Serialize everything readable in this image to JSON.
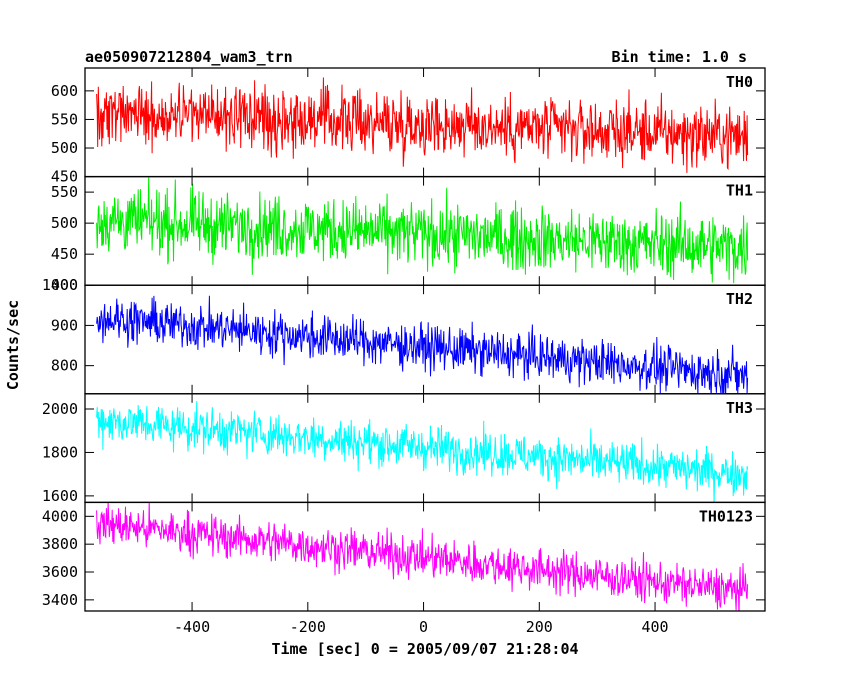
{
  "chart_data": {
    "type": "line",
    "title_left": "ae050907212804_wam3_trn",
    "title_right": "Bin time: 1.0 s",
    "xlabel": "Time [sec] 0 = 2005/09/07 21:28:04",
    "ylabel": "Counts/sec",
    "xlim": [
      -585,
      590
    ],
    "x_ticks": [
      "-400",
      "-200",
      "0",
      "200",
      "400"
    ],
    "x_tick_values": [
      -400,
      -200,
      0,
      200,
      400
    ],
    "x_range": [
      -565,
      560
    ],
    "bin_time": 1.0,
    "series": [
      {
        "name": "TH0",
        "color": "#ff0000",
        "ylim": [
          450,
          640
        ],
        "y_ticks": [
          "450",
          "500",
          "550",
          "600"
        ],
        "y_tick_values": [
          450,
          500,
          550,
          600
        ],
        "trend_start": 565,
        "trend_end": 520,
        "noise_sigma": 28
      },
      {
        "name": "TH1",
        "color": "#00ee00",
        "ylim": [
          400,
          575
        ],
        "y_ticks": [
          "400",
          "450",
          "500",
          "550"
        ],
        "y_tick_values": [
          400,
          450,
          500,
          550
        ],
        "trend_start": 505,
        "trend_end": 460,
        "noise_sigma": 26
      },
      {
        "name": "TH2",
        "color": "#0000ff",
        "ylim": [
          730,
          1000
        ],
        "y_ticks": [
          "800",
          "900",
          "1000"
        ],
        "y_tick_values": [
          800,
          900,
          1000
        ],
        "trend_start": 920,
        "trend_end": 775,
        "noise_sigma": 28
      },
      {
        "name": "TH3",
        "color": "#00ffff",
        "ylim": [
          1570,
          2070
        ],
        "y_ticks": [
          "1600",
          "1800",
          "2000"
        ],
        "y_tick_values": [
          1600,
          1800,
          2000
        ],
        "trend_start": 1950,
        "trend_end": 1700,
        "noise_sigma": 50
      },
      {
        "name": "TH0123",
        "color": "#ff00ff",
        "ylim": [
          3320,
          4100
        ],
        "y_ticks": [
          "3400",
          "3600",
          "3800",
          "4000"
        ],
        "y_tick_values": [
          3400,
          3600,
          3800,
          4000
        ],
        "trend_start": 3950,
        "trend_end": 3460,
        "noise_sigma": 75
      }
    ]
  }
}
